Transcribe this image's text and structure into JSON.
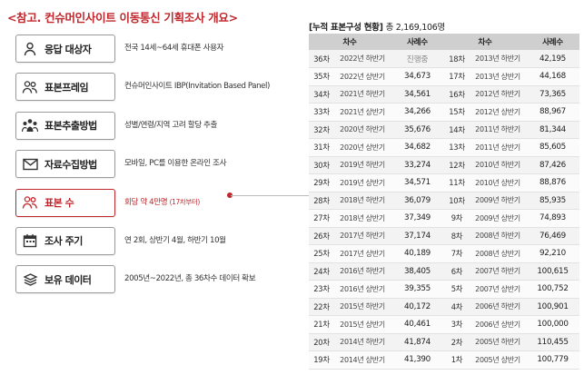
{
  "page_title": "<참고. 컨슈머인사이트 이동통신 기획조사 개요>",
  "items": [
    {
      "name": "respondents",
      "icon": "person-icon",
      "label": "응답 대상자",
      "desc": "전국 14세~64세 휴대폰 사용자"
    },
    {
      "name": "sample-frame",
      "icon": "people-icon",
      "label": "표본프레임",
      "desc": "컨슈머인사이트 IBP(Invitation Based Panel)"
    },
    {
      "name": "sampling-method",
      "icon": "group-icon",
      "label": "표본추출방법",
      "desc": "성별/연령/지역 고려 할당 추출"
    },
    {
      "name": "data-collection",
      "icon": "envelope-icon",
      "label": "자료수집방법",
      "desc": "모바일, PC를 이용한 온라인 조사"
    },
    {
      "name": "sample-size",
      "icon": "people-icon",
      "label": "표본 수",
      "desc": "회당 약 4만명",
      "sub": "(17차부터)",
      "highlight": true
    },
    {
      "name": "survey-cycle",
      "icon": "calendar-icon",
      "label": "조사 주기",
      "desc": "연 2회, 상반기 4월, 하반기 10월"
    },
    {
      "name": "retained-data",
      "icon": "stack-icon",
      "label": "보유 데이터",
      "desc": "2005년~2022년, 총 36차수 데이터 확보"
    }
  ],
  "table": {
    "title": "[누적 표본구성 현황]",
    "total": "총 2,169,106명",
    "headers": [
      "차수",
      "사례수",
      "차수",
      "사례수"
    ],
    "rows": [
      {
        "l_num": "36차",
        "l_period": "2022년 하반기",
        "l_val": "진행중",
        "r_num": "18차",
        "r_period": "2013년 하반기",
        "r_val": "42,195"
      },
      {
        "l_num": "35차",
        "l_period": "2022년 상반기",
        "l_val": "34,673",
        "r_num": "17차",
        "r_period": "2013년 상반기",
        "r_val": "44,168"
      },
      {
        "l_num": "34차",
        "l_period": "2021년 하반기",
        "l_val": "34,561",
        "r_num": "16차",
        "r_period": "2012년 하반기",
        "r_val": "73,365"
      },
      {
        "l_num": "33차",
        "l_period": "2021년 상반기",
        "l_val": "34,266",
        "r_num": "15차",
        "r_period": "2012년 상반기",
        "r_val": "88,967"
      },
      {
        "l_num": "32차",
        "l_period": "2020년 하반기",
        "l_val": "35,676",
        "r_num": "14차",
        "r_period": "2011년 하반기",
        "r_val": "81,344"
      },
      {
        "l_num": "31차",
        "l_period": "2020년 상반기",
        "l_val": "34,682",
        "r_num": "13차",
        "r_period": "2011년 상반기",
        "r_val": "85,605"
      },
      {
        "l_num": "30차",
        "l_period": "2019년 하반기",
        "l_val": "33,274",
        "r_num": "12차",
        "r_period": "2010년 하반기",
        "r_val": "87,426"
      },
      {
        "l_num": "29차",
        "l_period": "2019년 상반기",
        "l_val": "34,571",
        "r_num": "11차",
        "r_period": "2010년 상반기",
        "r_val": "88,876"
      },
      {
        "l_num": "28차",
        "l_period": "2018년 하반기",
        "l_val": "36,079",
        "r_num": "10차",
        "r_period": "2009년 하반기",
        "r_val": "85,935"
      },
      {
        "l_num": "27차",
        "l_period": "2018년 상반기",
        "l_val": "37,349",
        "r_num": "9차",
        "r_period": "2009년 상반기",
        "r_val": "74,893"
      },
      {
        "l_num": "26차",
        "l_period": "2017년 하반기",
        "l_val": "37,174",
        "r_num": "8차",
        "r_period": "2008년 하반기",
        "r_val": "76,469"
      },
      {
        "l_num": "25차",
        "l_period": "2017년 상반기",
        "l_val": "40,189",
        "r_num": "7차",
        "r_period": "2008년 상반기",
        "r_val": "92,210"
      },
      {
        "l_num": "24차",
        "l_period": "2016년 하반기",
        "l_val": "38,405",
        "r_num": "6차",
        "r_period": "2007년 하반기",
        "r_val": "100,615"
      },
      {
        "l_num": "23차",
        "l_period": "2016년 상반기",
        "l_val": "39,355",
        "r_num": "5차",
        "r_period": "2007년 상반기",
        "r_val": "100,752"
      },
      {
        "l_num": "22차",
        "l_period": "2015년 하반기",
        "l_val": "40,172",
        "r_num": "4차",
        "r_period": "2006년 하반기",
        "r_val": "100,901"
      },
      {
        "l_num": "21차",
        "l_period": "2015년 상반기",
        "l_val": "40,461",
        "r_num": "3차",
        "r_period": "2006년 상반기",
        "r_val": "100,000"
      },
      {
        "l_num": "20차",
        "l_period": "2014년 하반기",
        "l_val": "41,874",
        "r_num": "2차",
        "r_period": "2005년 하반기",
        "r_val": "110,455"
      },
      {
        "l_num": "19차",
        "l_period": "2014년 상반기",
        "l_val": "41,390",
        "r_num": "1차",
        "r_period": "2005년 상반기",
        "r_val": "100,779"
      }
    ]
  },
  "colors": {
    "accent": "#c0272d",
    "header_bg": "#cfcfcf",
    "row_bg": "#f3f3f3"
  }
}
